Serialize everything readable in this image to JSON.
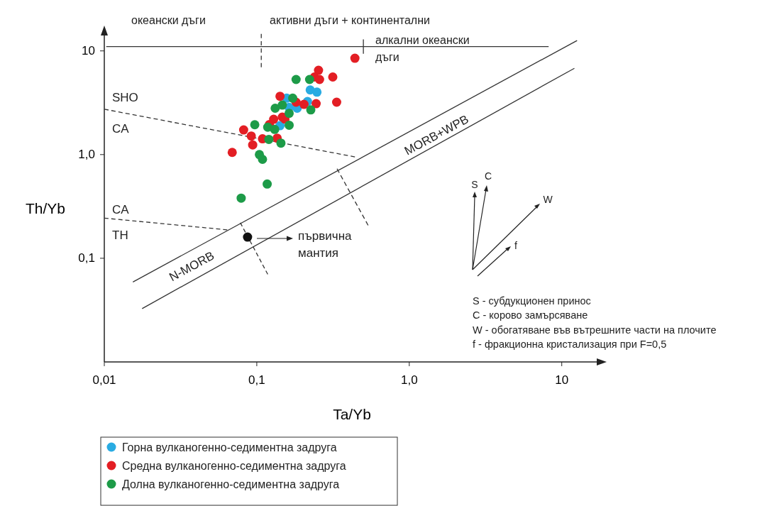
{
  "chart_data": {
    "type": "scatter",
    "xlabel": "Ta/Yb",
    "ylabel": "Th/Yb",
    "log": "xy",
    "grid": false,
    "legend": "bottom left",
    "marker": "circle",
    "xlim": [
      0.01,
      17.7
    ],
    "ylim": [
      0.01,
      15
    ],
    "xticks": [
      {
        "value": 0.01,
        "label": "0,01"
      },
      {
        "value": 0.1,
        "label": "0,1"
      },
      {
        "value": 1,
        "label": "1,0"
      },
      {
        "value": 10,
        "label": "10"
      }
    ],
    "yticks": [
      {
        "value": 0.1,
        "label": "0,1"
      },
      {
        "value": 1,
        "label": "1,0"
      },
      {
        "value": 10,
        "label": "10"
      }
    ],
    "series": [
      {
        "name": "Горна вулканогенно-седиментна задруга",
        "color": "#29abe2",
        "x": [
          0.224,
          0.248,
          0.157,
          0.215,
          0.163,
          0.184,
          0.142
        ],
        "values": [
          4.2,
          4.0,
          3.5,
          3.25,
          2.85,
          2.8,
          1.9
        ]
      },
      {
        "name": "Средна вулканогенно-седиментна задруга",
        "color": "#e31e24",
        "x": [
          0.44,
          0.254,
          0.239,
          0.258,
          0.315,
          0.334,
          0.245,
          0.204,
          0.181,
          0.142,
          0.147,
          0.153,
          0.129,
          0.121,
          0.082,
          0.092,
          0.109,
          0.136,
          0.094,
          0.069
        ],
        "values": [
          8.5,
          6.5,
          5.6,
          5.3,
          5.6,
          3.2,
          3.1,
          3.05,
          3.2,
          3.65,
          2.3,
          2.2,
          2.19,
          1.95,
          1.73,
          1.51,
          1.42,
          1.44,
          1.24,
          1.05
        ]
      },
      {
        "name": "Долна вулканогенно-седиментна задруга",
        "color": "#1d9b48",
        "x": [
          0.181,
          0.222,
          0.172,
          0.147,
          0.132,
          0.226,
          0.163,
          0.097,
          0.118,
          0.131,
          0.163,
          0.12,
          0.144,
          0.104,
          0.109,
          0.117,
          0.079
        ],
        "values": [
          5.3,
          5.3,
          3.5,
          3.0,
          2.8,
          2.7,
          2.5,
          1.94,
          1.84,
          1.75,
          1.92,
          1.4,
          1.29,
          1.0,
          0.9,
          0.52,
          0.38
        ]
      },
      {
        "color": "#111111",
        "x": [
          0.087
        ],
        "values": [
          0.16
        ]
      },
      {
        "type": "line",
        "marker": "none",
        "color": "#333333",
        "line_style": "solid",
        "x": [
          0.0154,
          12.6
        ],
        "values": [
          0.059,
          12.6
        ]
      },
      {
        "type": "line",
        "marker": "none",
        "color": "#333333",
        "line_style": "solid",
        "x": [
          0.0177,
          12.1
        ],
        "values": [
          0.0327,
          6.8
        ]
      },
      {
        "type": "line",
        "marker": "none",
        "color": "#333333",
        "line_style": "dashed",
        "x": [
          0.01,
          0.44
        ],
        "values": [
          2.74,
          0.95
        ]
      },
      {
        "type": "line",
        "marker": "none",
        "color": "#333333",
        "line_style": "dashed",
        "x": [
          0.01,
          0.064
        ],
        "values": [
          0.244,
          0.188
        ]
      },
      {
        "type": "line",
        "marker": "none",
        "color": "#333333",
        "line_style": "dashed",
        "x": [
          0.078,
          0.118
        ],
        "values": [
          0.22,
          0.07
        ]
      },
      {
        "type": "line",
        "marker": "none",
        "color": "#333333",
        "line_style": "dashed",
        "x": [
          0.336,
          0.537
        ],
        "values": [
          0.73,
          0.208
        ]
      },
      {
        "type": "line",
        "marker": "none",
        "color": "#333333",
        "line_style": "solid",
        "x": [
          0.0103,
          8.2
        ],
        "values": [
          11,
          11
        ]
      },
      {
        "type": "line",
        "marker": "none",
        "color": "#333333",
        "line_style": "dashed",
        "x": [
          0.107,
          0.107
        ],
        "values": [
          6.95,
          14.6
        ]
      },
      {
        "type": "line",
        "marker": "none",
        "color": "#333333",
        "line_style": "solid",
        "x": [
          0.5,
          0.5
        ],
        "values": [
          9.4,
          12.9
        ]
      }
    ],
    "annotations": [
      "океански дъги",
      "активни дъги + континентални",
      "алкални океански дъги",
      "SHO",
      "CA",
      "CA",
      "TH",
      "MORB+WPB",
      "N-MORB",
      "S",
      "C",
      "W",
      "f",
      "S - субдукционен принос",
      "C - корово замърсяване",
      "W - обогатяване във вътрешните части на плочите",
      "f - фракционна кристализация при F=0,5",
      "първична мантия"
    ]
  }
}
